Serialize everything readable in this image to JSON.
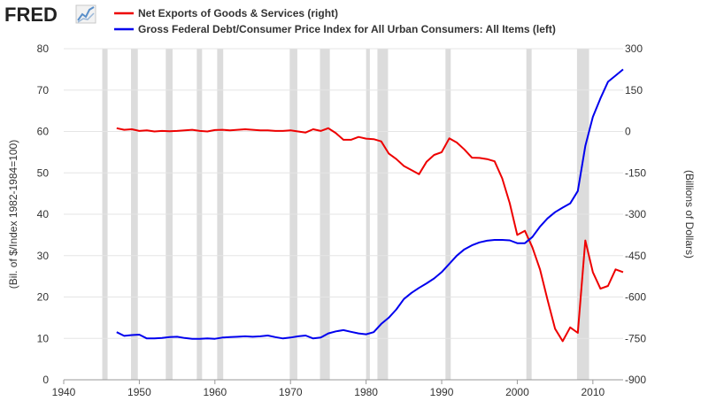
{
  "logo": {
    "text": "FRED"
  },
  "colors": {
    "series_red": "#ee0000",
    "series_blue": "#0000ee",
    "recession": "#dcdcdc",
    "grid": "#e5e5e5"
  },
  "chart_data": {
    "type": "line",
    "grid": true,
    "legend_placement": "top",
    "recession_bands": [
      [
        1945.1,
        1945.8
      ],
      [
        1948.9,
        1949.8
      ],
      [
        1953.5,
        1954.4
      ],
      [
        1957.6,
        1958.3
      ],
      [
        1960.3,
        1961.1
      ],
      [
        1969.9,
        1970.9
      ],
      [
        1973.9,
        1975.2
      ],
      [
        1980.0,
        1980.5
      ],
      [
        1981.5,
        1982.9
      ],
      [
        1990.5,
        1991.2
      ],
      [
        2001.2,
        2001.9
      ],
      [
        2007.9,
        2009.5
      ]
    ],
    "xaxis": {
      "min": 1940,
      "max": 2014,
      "ticks": [
        1940,
        1950,
        1960,
        1970,
        1980,
        1990,
        2000,
        2010
      ],
      "tick_labels": [
        "1940",
        "1950",
        "1960",
        "1970",
        "1980",
        "1990",
        "2000",
        "2010"
      ]
    },
    "yaxis_left": {
      "label": "(Bil. of $/Index 1982-1984=100)",
      "min": 0,
      "max": 80,
      "ticks": [
        0,
        10,
        20,
        30,
        40,
        50,
        60,
        70,
        80
      ],
      "tick_labels": [
        "0",
        "10",
        "20",
        "30",
        "40",
        "50",
        "60",
        "70",
        "80"
      ]
    },
    "yaxis_right": {
      "label": "(Billions of Dollars)",
      "min": -900,
      "max": 300,
      "ticks": [
        300,
        150,
        0,
        -150,
        -300,
        -450,
        -600,
        -750,
        -900
      ],
      "tick_labels": [
        "300",
        "150",
        "0",
        "-150",
        "-300",
        "-450",
        "-600",
        "-750",
        "-900"
      ]
    },
    "series": [
      {
        "name": "Net Exports of Goods & Services (right)",
        "axis": "right",
        "color": "#ee0000",
        "x": [
          1947,
          1948,
          1949,
          1950,
          1951,
          1952,
          1953,
          1954,
          1955,
          1956,
          1957,
          1958,
          1959,
          1960,
          1961,
          1962,
          1963,
          1964,
          1965,
          1966,
          1967,
          1968,
          1969,
          1970,
          1971,
          1972,
          1973,
          1974,
          1975,
          1976,
          1977,
          1978,
          1979,
          1980,
          1981,
          1982,
          1983,
          1984,
          1985,
          1986,
          1987,
          1988,
          1989,
          1990,
          1991,
          1992,
          1993,
          1994,
          1995,
          1996,
          1997,
          1998,
          1999,
          2000,
          2001,
          2002,
          2003,
          2004,
          2005,
          2006,
          2007,
          2008,
          2009,
          2010,
          2011,
          2012,
          2013,
          2014
        ],
        "values": [
          12,
          6,
          8,
          2,
          4,
          0,
          2,
          1,
          2,
          4,
          6,
          2,
          0,
          5,
          6,
          4,
          6,
          8,
          6,
          4,
          4,
          2,
          2,
          4,
          0,
          -4,
          8,
          2,
          12,
          -6,
          -30,
          -30,
          -20,
          -26,
          -28,
          -36,
          -80,
          -100,
          -125,
          -140,
          -155,
          -110,
          -85,
          -75,
          -25,
          -40,
          -65,
          -95,
          -96,
          -100,
          -108,
          -170,
          -260,
          -375,
          -360,
          -420,
          -500,
          -610,
          -715,
          -760,
          -710,
          -730,
          -395,
          -510,
          -570,
          -560,
          -500,
          -510
        ]
      },
      {
        "name": "Gross Federal Debt/Consumer Price Index for All Urban Consumers: All Items (left)",
        "axis": "left",
        "color": "#0000ee",
        "x": [
          1947,
          1948,
          1949,
          1950,
          1951,
          1952,
          1953,
          1954,
          1955,
          1956,
          1957,
          1958,
          1959,
          1960,
          1961,
          1962,
          1963,
          1964,
          1965,
          1966,
          1967,
          1968,
          1969,
          1970,
          1971,
          1972,
          1973,
          1974,
          1975,
          1976,
          1977,
          1978,
          1979,
          1980,
          1981,
          1982,
          1983,
          1984,
          1985,
          1986,
          1987,
          1988,
          1989,
          1990,
          1991,
          1992,
          1993,
          1994,
          1995,
          1996,
          1997,
          1998,
          1999,
          2000,
          2001,
          2002,
          2003,
          2004,
          2005,
          2006,
          2007,
          2008,
          2009,
          2010,
          2011,
          2012,
          2013,
          2014
        ],
        "values": [
          11.5,
          10.6,
          10.8,
          10.9,
          10.0,
          10.0,
          10.1,
          10.3,
          10.4,
          10.1,
          9.9,
          9.9,
          10.0,
          9.9,
          10.2,
          10.3,
          10.4,
          10.5,
          10.4,
          10.5,
          10.7,
          10.3,
          10.0,
          10.2,
          10.5,
          10.7,
          10.0,
          10.2,
          11.2,
          11.7,
          12.0,
          11.6,
          11.2,
          11.0,
          11.5,
          13.5,
          15.0,
          17.0,
          19.5,
          21.0,
          22.2,
          23.3,
          24.5,
          26.0,
          28.0,
          30.0,
          31.5,
          32.5,
          33.2,
          33.6,
          33.8,
          33.8,
          33.7,
          33.0,
          33.0,
          34.5,
          37.0,
          39.0,
          40.5,
          41.6,
          42.6,
          45.6,
          56.5,
          63.5,
          68.0,
          72.0,
          73.5,
          75.0
        ]
      }
    ]
  }
}
